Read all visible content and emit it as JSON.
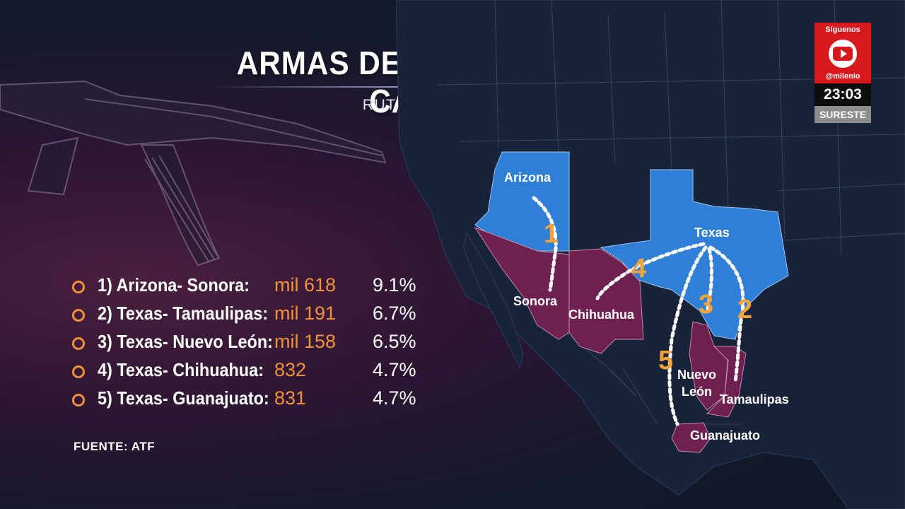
{
  "header": {
    "title": "ARMAS DE EU USADAS POR CÁRTELES",
    "subtitle": "RUTAS HACIA MÉXICO"
  },
  "routes": [
    {
      "route": "1) Arizona- Sonora:",
      "amount": "mil 618",
      "percent": "9.1%"
    },
    {
      "route": "2) Texas- Tamaulipas:",
      "amount": "mil 191",
      "percent": "6.7%"
    },
    {
      "route": "3) Texas- Nuevo León:",
      "amount": "mil 158",
      "percent": "6.5%"
    },
    {
      "route": "4) Texas- Chihuahua:",
      "amount": "832",
      "percent": "4.7%"
    },
    {
      "route": "5) Texas- Guanajuato:",
      "amount": "831",
      "percent": "4.7%"
    }
  ],
  "source": "FUENTE: ATF",
  "map": {
    "labels": {
      "arizona": "Arizona",
      "texas": "Texas",
      "sonora": "Sonora",
      "chihuahua": "Chihuahua",
      "nuevo_leon_1": "Nuevo",
      "nuevo_leon_2": "León",
      "tamaulipas": "Tamaulipas",
      "guanajuato": "Guanajuato"
    },
    "route_numbers": {
      "r1": "1",
      "r2": "2",
      "r3": "3",
      "r4": "4",
      "r5": "5"
    }
  },
  "badge": {
    "follow": "Síguenos",
    "handle": "@milenio",
    "time": "23:03",
    "region": "SURESTE"
  },
  "colors": {
    "accent": "#f2913a",
    "us_states": "#2f7fd6",
    "mx_states": "#6e2150",
    "brand_red": "#d8181c"
  }
}
